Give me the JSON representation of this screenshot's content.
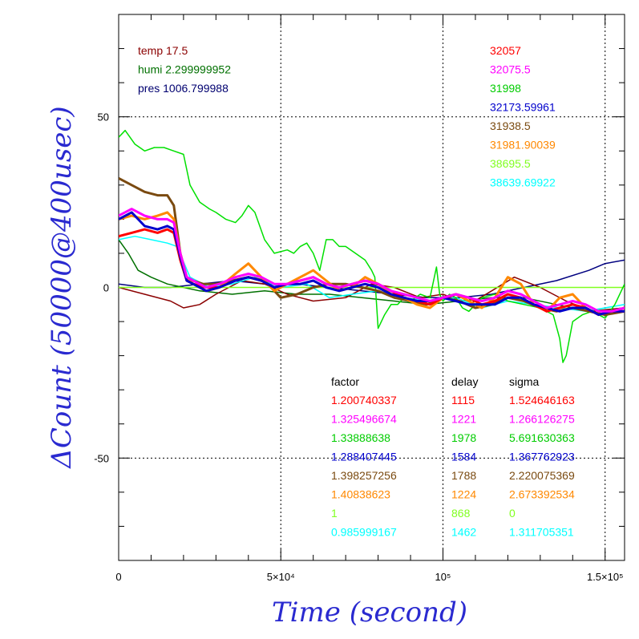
{
  "chart_data": {
    "type": "line",
    "xlabel": "Time (second)",
    "ylabel": "ΔCount (50000@400usec)",
    "xlim": [
      0,
      156000
    ],
    "ylim": [
      -80,
      80
    ],
    "x_ticks": [
      {
        "value": 0,
        "label": "0"
      },
      {
        "value": 50000,
        "label": "5×10⁴"
      },
      {
        "value": 100000,
        "label": "10⁵"
      },
      {
        "value": 150000,
        "label": "1.5×10⁵"
      }
    ],
    "y_ticks": [
      {
        "value": 50,
        "label": "50"
      },
      {
        "value": 0,
        "label": "0"
      },
      {
        "value": -50,
        "label": "-50"
      }
    ],
    "grid": true,
    "env": [
      {
        "text": "temp 17.5",
        "color": "#8b0000"
      },
      {
        "text": "humi 2.299999952",
        "color": "#007000"
      },
      {
        "text": "pres 1006.799988",
        "color": "#000070"
      }
    ],
    "counts": [
      {
        "text": "32057",
        "color": "#ff0000"
      },
      {
        "text": "32075.5",
        "color": "#ff00ff"
      },
      {
        "text": "31998",
        "color": "#00cc00"
      },
      {
        "text": "32173.59961",
        "color": "#0000cc"
      },
      {
        "text": "31938.5",
        "color": "#7a4a10"
      },
      {
        "text": "31981.90039",
        "color": "#ff8800"
      },
      {
        "text": "38695.5",
        "color": "#80ff20"
      },
      {
        "text": "38639.69922",
        "color": "#00ffff"
      }
    ],
    "table": {
      "headers": [
        "factor",
        "delay",
        "sigma"
      ],
      "rows": [
        {
          "factor": "1.200740337",
          "delay": "1115",
          "sigma": "1.524646163",
          "color": "#ff0000"
        },
        {
          "factor": "1.325496674",
          "delay": "1221",
          "sigma": "1.266126275",
          "color": "#ff00ff"
        },
        {
          "factor": "1.33888638",
          "delay": "1978",
          "sigma": "5.691630363",
          "color": "#00cc00"
        },
        {
          "factor": "1.288407445",
          "delay": "1584",
          "sigma": "1.367762923",
          "color": "#0000cc"
        },
        {
          "factor": "1.398257256",
          "delay": "1788",
          "sigma": "2.220075369",
          "color": "#7a4a10"
        },
        {
          "factor": "1.40838623",
          "delay": "1224",
          "sigma": "2.673392534",
          "color": "#ff8800"
        },
        {
          "factor": "1",
          "delay": "868",
          "sigma": "0",
          "color": "#80ff20"
        },
        {
          "factor": "0.985999167",
          "delay": "1462",
          "sigma": "1.311705351",
          "color": "#00ffff"
        }
      ]
    },
    "series": [
      {
        "color": "#000080",
        "x": [
          0,
          8000,
          16000,
          25000,
          35000,
          45000,
          55000,
          65000,
          75000,
          85000,
          95000,
          105000,
          115000,
          125000,
          135000,
          145000,
          150000,
          156000
        ],
        "y": [
          1,
          0,
          0,
          1,
          2,
          1,
          1,
          0,
          -1,
          -2,
          -3,
          -3,
          -2,
          0,
          2,
          5,
          7,
          8
        ]
      },
      {
        "color": "#007000",
        "x": [
          0,
          3000,
          6000,
          10000,
          15000,
          20000,
          25000,
          35000,
          45000,
          55000,
          65000,
          75000,
          85000,
          95000,
          105000,
          115000,
          125000,
          135000,
          145000,
          156000
        ],
        "y": [
          14,
          10,
          5,
          3,
          1,
          0,
          -1,
          -2,
          -1,
          -2,
          -2,
          -3,
          -4,
          -5,
          -4,
          -3,
          -3,
          -5,
          -7,
          -6
        ]
      },
      {
        "color": "#8b0000",
        "x": [
          0,
          8000,
          16000,
          20000,
          25000,
          30000,
          38000,
          45000,
          52000,
          60000,
          70000,
          78000,
          85000,
          93000,
          100000,
          108000,
          115000,
          122000,
          130000,
          138000,
          146000,
          156000
        ],
        "y": [
          0,
          -2,
          -4,
          -6,
          -5,
          -2,
          2,
          1,
          -2,
          -4,
          -3,
          1,
          0,
          -3,
          -2,
          -5,
          -1,
          3,
          0,
          -4,
          -7,
          -6
        ]
      },
      {
        "color": "#80ff20",
        "x": [
          0,
          156000
        ],
        "y": [
          0,
          0
        ]
      },
      {
        "color": "#00ffff",
        "x": [
          0,
          5000,
          10000,
          15000,
          18000,
          22000,
          28000,
          35000,
          42000,
          50000,
          58000,
          65000,
          72000,
          80000,
          88000,
          96000,
          104000,
          112000,
          120000,
          128000,
          136000,
          144000,
          150000,
          156000
        ],
        "y": [
          14,
          15,
          14,
          13,
          12,
          3,
          0,
          1,
          3,
          0,
          1,
          -3,
          -2,
          -1,
          -3,
          -4,
          -3,
          -6,
          -4,
          -5,
          -6,
          -7,
          -6,
          -5
        ]
      },
      {
        "color": "#00e000",
        "x": [
          0,
          2000,
          5000,
          8000,
          11000,
          14000,
          17000,
          20000,
          22000,
          25000,
          28000,
          30000,
          33000,
          36000,
          38000,
          40000,
          42000,
          45000,
          48000,
          52000,
          54000,
          56000,
          58000,
          60000,
          62000,
          64000,
          66000,
          68000,
          70000,
          73000,
          76000,
          78000,
          79000,
          80000,
          82000,
          84000,
          86000,
          88000,
          90000,
          93000,
          96000,
          98000,
          99000,
          100000,
          102000,
          104000,
          106000,
          108000,
          112000,
          116000,
          120000,
          125000,
          130000,
          134000,
          136000,
          137000,
          138000,
          140000,
          143000,
          146000,
          150000,
          153000,
          156000
        ],
        "y": [
          44,
          46,
          42,
          40,
          41,
          41,
          40,
          39,
          30,
          25,
          23,
          22,
          20,
          19,
          21,
          24,
          22,
          14,
          10,
          11,
          10,
          12,
          13,
          10,
          5,
          14,
          14,
          12,
          12,
          10,
          8,
          5,
          3,
          -12,
          -8,
          -5,
          -5,
          -3,
          -4,
          -2,
          -3,
          6,
          -2,
          -4,
          -2,
          -3,
          -6,
          -7,
          -3,
          -2,
          -4,
          -5,
          -6,
          -8,
          -15,
          -22,
          -20,
          -10,
          -8,
          -7,
          -9,
          -5,
          1
        ]
      },
      {
        "color": "#7a4a10",
        "x": [
          0,
          4000,
          8000,
          12000,
          15000,
          17000,
          19000,
          21000,
          23000,
          26000,
          30000,
          35000,
          40000,
          45000,
          50000,
          55000,
          60000,
          65000,
          70000,
          75000,
          80000,
          85000,
          90000,
          95000,
          100000,
          105000,
          110000,
          115000,
          120000,
          125000,
          130000,
          135000,
          140000,
          145000,
          150000,
          156000
        ],
        "y": [
          32,
          30,
          28,
          27,
          27,
          24,
          10,
          3,
          2,
          1,
          1,
          2,
          3,
          2,
          -3,
          -2,
          0,
          1,
          1,
          0,
          -1,
          -3,
          -4,
          -5,
          -3,
          -4,
          -6,
          -5,
          -3,
          -4,
          -6,
          -7,
          -6,
          -7,
          -8,
          -7
        ]
      },
      {
        "color": "#ff8800",
        "x": [
          0,
          4000,
          8000,
          12000,
          15000,
          17000,
          19000,
          21000,
          23000,
          27000,
          31000,
          36000,
          40000,
          44000,
          48000,
          52000,
          56000,
          60000,
          64000,
          68000,
          72000,
          76000,
          80000,
          84000,
          88000,
          92000,
          96000,
          100000,
          104000,
          108000,
          112000,
          116000,
          120000,
          124000,
          128000,
          132000,
          136000,
          140000,
          144000,
          148000,
          152000,
          156000
        ],
        "y": [
          20,
          21,
          20,
          21,
          22,
          20,
          10,
          3,
          1,
          -1,
          0,
          4,
          7,
          3,
          -1,
          1,
          3,
          5,
          2,
          -1,
          0,
          3,
          1,
          -2,
          -3,
          -5,
          -6,
          -3,
          -2,
          -4,
          -6,
          -3,
          3,
          1,
          -5,
          -7,
          -3,
          -2,
          -6,
          -8,
          -7,
          -6
        ]
      },
      {
        "color": "#ff0000",
        "x": [
          0,
          4000,
          8000,
          12000,
          15000,
          17000,
          19000,
          21000,
          23000,
          27000,
          31000,
          36000,
          40000,
          44000,
          48000,
          52000,
          56000,
          60000,
          64000,
          68000,
          72000,
          76000,
          80000,
          84000,
          88000,
          92000,
          96000,
          100000,
          104000,
          108000,
          112000,
          116000,
          120000,
          124000,
          128000,
          132000,
          136000,
          140000,
          144000,
          148000,
          152000,
          156000
        ],
        "y": [
          15,
          16,
          17,
          16,
          17,
          16,
          8,
          2,
          1,
          0,
          0,
          2,
          3,
          2,
          0,
          1,
          2,
          3,
          1,
          0,
          1,
          2,
          1,
          -1,
          -3,
          -4,
          -5,
          -3,
          -2,
          -3,
          -5,
          -4,
          -2,
          -3,
          -5,
          -7,
          -6,
          -5,
          -6,
          -8,
          -7,
          -7
        ]
      },
      {
        "color": "#0000cc",
        "x": [
          0,
          4000,
          8000,
          12000,
          15000,
          17000,
          19000,
          21000,
          23000,
          27000,
          31000,
          36000,
          40000,
          44000,
          48000,
          52000,
          56000,
          60000,
          64000,
          68000,
          72000,
          76000,
          80000,
          84000,
          88000,
          92000,
          96000,
          100000,
          104000,
          108000,
          112000,
          116000,
          120000,
          124000,
          128000,
          132000,
          136000,
          140000,
          144000,
          148000,
          152000,
          156000
        ],
        "y": [
          20,
          22,
          18,
          17,
          18,
          17,
          9,
          2,
          1,
          -1,
          0,
          2,
          3,
          2,
          0,
          1,
          1,
          2,
          0,
          -1,
          0,
          1,
          0,
          -2,
          -3,
          -4,
          -4,
          -3,
          -4,
          -5,
          -5,
          -5,
          -3,
          -3,
          -5,
          -6,
          -7,
          -6,
          -6,
          -8,
          -7,
          -7
        ]
      },
      {
        "color": "#ff00ff",
        "x": [
          0,
          4000,
          8000,
          12000,
          15000,
          17000,
          19000,
          21000,
          23000,
          27000,
          31000,
          36000,
          40000,
          44000,
          48000,
          52000,
          56000,
          60000,
          64000,
          68000,
          72000,
          76000,
          80000,
          84000,
          88000,
          92000,
          96000,
          100000,
          104000,
          108000,
          112000,
          116000,
          120000,
          124000,
          128000,
          132000,
          136000,
          140000,
          144000,
          148000,
          152000,
          156000
        ],
        "y": [
          21,
          23,
          21,
          20,
          20,
          19,
          10,
          3,
          2,
          0,
          1,
          3,
          4,
          3,
          1,
          1,
          2,
          3,
          1,
          0,
          1,
          2,
          1,
          -1,
          -2,
          -3,
          -4,
          -3,
          -2,
          -3,
          -4,
          -3,
          -1,
          -2,
          -4,
          -6,
          -5,
          -4,
          -5,
          -7,
          -7,
          -6
        ]
      }
    ]
  }
}
